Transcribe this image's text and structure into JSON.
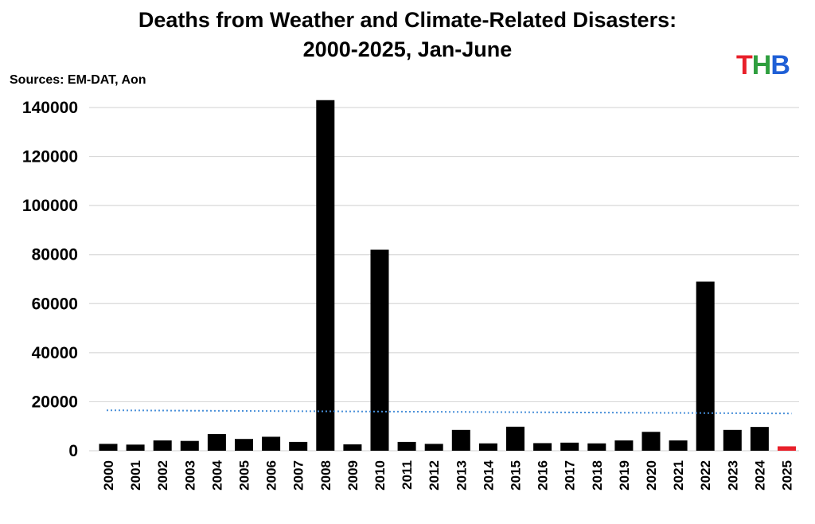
{
  "title_line1": "Deaths from Weather and Climate-Related Disasters:",
  "title_line2": "2000-2025, Jan-June",
  "sources": "Sources: EM-DAT, Aon",
  "logo": {
    "letters": [
      "T",
      "H",
      "B"
    ],
    "colors": [
      "#e8202a",
      "#2e9e3e",
      "#1f5fd6"
    ]
  },
  "colors": {
    "bar": "#000000",
    "highlight": "#e8202a",
    "trend": "#4a90d9",
    "grid": "#d9d9d9"
  },
  "chart_data": {
    "type": "bar",
    "title": "Deaths from Weather and Climate-Related Disasters: 2000-2025, Jan-June",
    "xlabel": "",
    "ylabel": "",
    "ylim": [
      0,
      140000
    ],
    "yticks": [
      0,
      20000,
      40000,
      60000,
      80000,
      100000,
      120000,
      140000
    ],
    "grid": true,
    "categories": [
      "2000",
      "2001",
      "2002",
      "2003",
      "2004",
      "2005",
      "2006",
      "2007",
      "2008",
      "2009",
      "2010",
      "2011",
      "2012",
      "2013",
      "2014",
      "2015",
      "2016",
      "2017",
      "2018",
      "2019",
      "2020",
      "2021",
      "2022",
      "2023",
      "2024",
      "2025"
    ],
    "values": [
      2800,
      2500,
      4200,
      4000,
      6800,
      4800,
      5700,
      3600,
      143000,
      2600,
      82000,
      3600,
      2800,
      8500,
      3000,
      9800,
      3100,
      3300,
      3000,
      4200,
      7700,
      4200,
      69000,
      8500,
      9700,
      1800
    ],
    "highlight_category": "2025",
    "trendline": {
      "style": "dotted",
      "start": 16500,
      "end": 15200
    }
  }
}
